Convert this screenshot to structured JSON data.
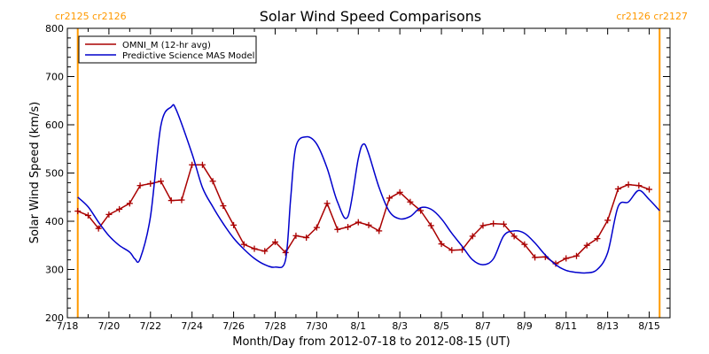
{
  "chart_data": {
    "type": "line",
    "title": "Solar Wind Speed Comparisons",
    "xlabel": "Month/Day from 2012-07-18 to 2012-08-15 (UT)",
    "ylabel": "Solar Wind Speed (km/s)",
    "ylim": [
      200,
      800
    ],
    "xlim": [
      "2012-07-18",
      "2012-08-16"
    ],
    "y_ticks": [
      200,
      300,
      400,
      500,
      600,
      700,
      800
    ],
    "x_ticks": [
      {
        "date": "2012-07-18",
        "label": "7/18"
      },
      {
        "date": "2012-07-20",
        "label": "7/20"
      },
      {
        "date": "2012-07-22",
        "label": "7/22"
      },
      {
        "date": "2012-07-24",
        "label": "7/24"
      },
      {
        "date": "2012-07-26",
        "label": "7/26"
      },
      {
        "date": "2012-07-28",
        "label": "7/28"
      },
      {
        "date": "2012-07-30",
        "label": "7/30"
      },
      {
        "date": "2012-08-01",
        "label": "8/1"
      },
      {
        "date": "2012-08-03",
        "label": "8/3"
      },
      {
        "date": "2012-08-05",
        "label": "8/5"
      },
      {
        "date": "2012-08-07",
        "label": "8/7"
      },
      {
        "date": "2012-08-09",
        "label": "8/9"
      },
      {
        "date": "2012-08-11",
        "label": "8/11"
      },
      {
        "date": "2012-08-13",
        "label": "8/13"
      },
      {
        "date": "2012-08-15",
        "label": "8/15"
      }
    ],
    "legend_position": "top-left",
    "series": [
      {
        "name": "OMNI_M (12-hr avg)",
        "color": "#aa0000",
        "marker": "plus",
        "points": [
          [
            "2012-07-18 12:00",
            421
          ],
          [
            "2012-07-19 00:00",
            412
          ],
          [
            "2012-07-19 12:00",
            385
          ],
          [
            "2012-07-20 00:00",
            414
          ],
          [
            "2012-07-20 12:00",
            425
          ],
          [
            "2012-07-21 00:00",
            437
          ],
          [
            "2012-07-21 12:00",
            474
          ],
          [
            "2012-07-22 00:00",
            478
          ],
          [
            "2012-07-22 12:00",
            483
          ],
          [
            "2012-07-23 00:00",
            443
          ],
          [
            "2012-07-23 12:00",
            444
          ],
          [
            "2012-07-24 00:00",
            517
          ],
          [
            "2012-07-24 12:00",
            517
          ],
          [
            "2012-07-25 00:00",
            483
          ],
          [
            "2012-07-25 12:00",
            432
          ],
          [
            "2012-07-26 00:00",
            392
          ],
          [
            "2012-07-26 12:00",
            352
          ],
          [
            "2012-07-27 00:00",
            343
          ],
          [
            "2012-07-27 12:00",
            338
          ],
          [
            "2012-07-28 00:00",
            357
          ],
          [
            "2012-07-28 12:00",
            335
          ],
          [
            "2012-07-29 00:00",
            370
          ],
          [
            "2012-07-29 12:00",
            366
          ],
          [
            "2012-07-30 00:00",
            387
          ],
          [
            "2012-07-30 12:00",
            437
          ],
          [
            "2012-07-31 00:00",
            383
          ],
          [
            "2012-07-31 12:00",
            388
          ],
          [
            "2012-08-01 00:00",
            398
          ],
          [
            "2012-08-01 12:00",
            392
          ],
          [
            "2012-08-02 00:00",
            380
          ],
          [
            "2012-08-02 12:00",
            448
          ],
          [
            "2012-08-03 00:00",
            460
          ],
          [
            "2012-08-03 12:00",
            440
          ],
          [
            "2012-08-04 00:00",
            422
          ],
          [
            "2012-08-04 12:00",
            391
          ],
          [
            "2012-08-05 00:00",
            353
          ],
          [
            "2012-08-05 12:00",
            340
          ],
          [
            "2012-08-06 00:00",
            341
          ],
          [
            "2012-08-06 12:00",
            369
          ],
          [
            "2012-08-07 00:00",
            391
          ],
          [
            "2012-08-07 12:00",
            395
          ],
          [
            "2012-08-08 00:00",
            394
          ],
          [
            "2012-08-08 12:00",
            369
          ],
          [
            "2012-08-09 00:00",
            352
          ],
          [
            "2012-08-09 12:00",
            325
          ],
          [
            "2012-08-10 00:00",
            326
          ],
          [
            "2012-08-10 12:00",
            312
          ],
          [
            "2012-08-11 00:00",
            323
          ],
          [
            "2012-08-11 12:00",
            328
          ],
          [
            "2012-08-12 00:00",
            350
          ],
          [
            "2012-08-12 12:00",
            364
          ],
          [
            "2012-08-13 00:00",
            402
          ],
          [
            "2012-08-13 12:00",
            467
          ],
          [
            "2012-08-14 00:00",
            476
          ],
          [
            "2012-08-14 12:00",
            474
          ],
          [
            "2012-08-15 00:00",
            466
          ]
        ]
      },
      {
        "name": "Predictive Science MAS Model",
        "color": "#0000cc",
        "marker": "none",
        "points": [
          [
            "2012-07-18 12:00",
            450
          ],
          [
            "2012-07-19 00:00",
            430
          ],
          [
            "2012-07-19 12:00",
            398
          ],
          [
            "2012-07-20 00:00",
            370
          ],
          [
            "2012-07-20 12:00",
            350
          ],
          [
            "2012-07-21 00:00",
            336
          ],
          [
            "2012-07-21 06:00",
            322
          ],
          [
            "2012-07-21 12:00",
            322
          ],
          [
            "2012-07-22 00:00",
            410
          ],
          [
            "2012-07-22 12:00",
            598
          ],
          [
            "2012-07-23 00:00",
            637
          ],
          [
            "2012-07-23 06:00",
            630
          ],
          [
            "2012-07-24 00:00",
            540
          ],
          [
            "2012-07-24 12:00",
            470
          ],
          [
            "2012-07-25 00:00",
            430
          ],
          [
            "2012-07-25 12:00",
            395
          ],
          [
            "2012-07-26 00:00",
            365
          ],
          [
            "2012-07-26 12:00",
            342
          ],
          [
            "2012-07-27 00:00",
            323
          ],
          [
            "2012-07-27 12:00",
            310
          ],
          [
            "2012-07-28 00:00",
            305
          ],
          [
            "2012-07-28 12:00",
            320
          ],
          [
            "2012-07-28 18:00",
            450
          ],
          [
            "2012-07-29 00:00",
            555
          ],
          [
            "2012-07-29 12:00",
            575
          ],
          [
            "2012-07-30 00:00",
            560
          ],
          [
            "2012-07-30 12:00",
            510
          ],
          [
            "2012-07-31 00:00",
            440
          ],
          [
            "2012-07-31 12:00",
            410
          ],
          [
            "2012-08-01 00:00",
            530
          ],
          [
            "2012-08-01 06:00",
            560
          ],
          [
            "2012-08-01 12:00",
            540
          ],
          [
            "2012-08-02 00:00",
            470
          ],
          [
            "2012-08-02 12:00",
            420
          ],
          [
            "2012-08-03 00:00",
            405
          ],
          [
            "2012-08-03 12:00",
            410
          ],
          [
            "2012-08-04 00:00",
            428
          ],
          [
            "2012-08-04 12:00",
            425
          ],
          [
            "2012-08-05 00:00",
            405
          ],
          [
            "2012-08-05 12:00",
            375
          ],
          [
            "2012-08-06 00:00",
            348
          ],
          [
            "2012-08-06 12:00",
            320
          ],
          [
            "2012-08-07 00:00",
            310
          ],
          [
            "2012-08-07 12:00",
            322
          ],
          [
            "2012-08-08 00:00",
            370
          ],
          [
            "2012-08-08 12:00",
            380
          ],
          [
            "2012-08-09 00:00",
            375
          ],
          [
            "2012-08-09 12:00",
            355
          ],
          [
            "2012-08-10 00:00",
            330
          ],
          [
            "2012-08-10 12:00",
            310
          ],
          [
            "2012-08-11 00:00",
            298
          ],
          [
            "2012-08-11 12:00",
            294
          ],
          [
            "2012-08-12 00:00",
            293
          ],
          [
            "2012-08-12 12:00",
            300
          ],
          [
            "2012-08-13 00:00",
            335
          ],
          [
            "2012-08-13 12:00",
            430
          ],
          [
            "2012-08-14 00:00",
            440
          ],
          [
            "2012-08-14 12:00",
            464
          ],
          [
            "2012-08-15 00:00",
            445
          ],
          [
            "2012-08-15 12:00",
            422
          ]
        ]
      }
    ],
    "vertical_markers": [
      {
        "date": "2012-07-18 12:00",
        "label": "cr2125 cr2126",
        "label_side": "left",
        "color": "#ff9900"
      },
      {
        "date": "2012-08-15 12:00",
        "label": "cr2126 cr2127",
        "label_side": "right",
        "color": "#ff9900"
      }
    ]
  }
}
